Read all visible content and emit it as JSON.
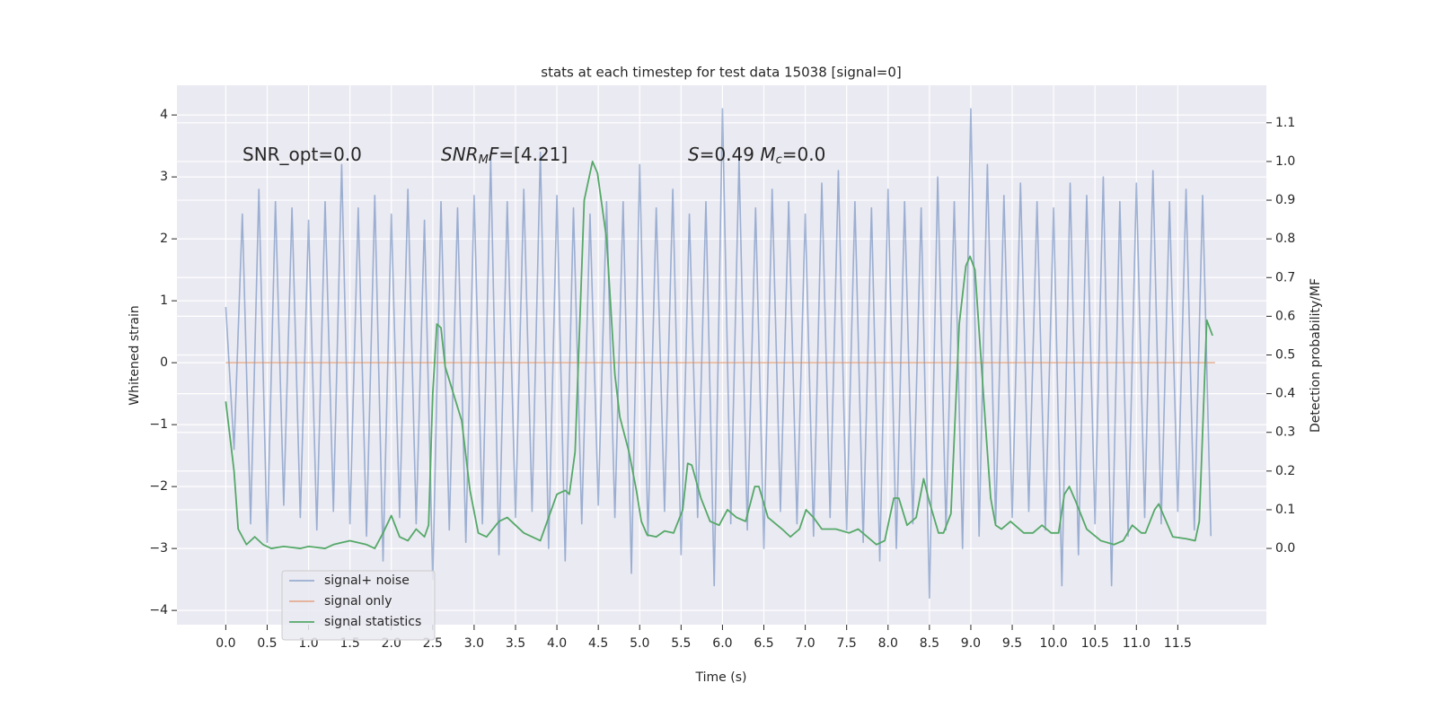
{
  "chart_data": {
    "type": "line",
    "title": "stats at each timestep for test data 15038 [signal=0]",
    "xlabel": "Time (s)",
    "ylabel": "Whitened strain",
    "y2label": "Detection probability/MF",
    "annotations": [
      [
        "SNR_opt=0.0"
      ],
      [
        {
          "t": "SNR",
          "italic": true
        },
        {
          "t": "M",
          "italic": true,
          "sub": true
        },
        {
          "t": "F",
          "italic": true
        },
        "=[4.21]"
      ],
      [
        {
          "t": "S",
          "italic": true
        },
        "=0.49   ",
        {
          "t": "M",
          "italic": true
        },
        {
          "t": "c",
          "italic": true,
          "sub": true
        },
        "=0.0"
      ]
    ],
    "xlim": [
      -0.59,
      12.57
    ],
    "ylim": [
      -4.23,
      4.48
    ],
    "y2lim": [
      -0.197,
      1.197
    ],
    "xticks": [
      {
        "value": 0,
        "label": "0.0"
      },
      {
        "value": 0.5,
        "label": "0.5"
      },
      {
        "value": 1,
        "label": "1.0"
      },
      {
        "value": 1.5,
        "label": "1.5"
      },
      {
        "value": 2,
        "label": "2.0"
      },
      {
        "value": 2.5,
        "label": "2.5"
      },
      {
        "value": 3,
        "label": "3.0"
      },
      {
        "value": 3.5,
        "label": "3.5"
      },
      {
        "value": 4,
        "label": "4.0"
      },
      {
        "value": 4.5,
        "label": "4.5"
      },
      {
        "value": 5,
        "label": "5.0"
      },
      {
        "value": 5.5,
        "label": "5.5"
      },
      {
        "value": 6,
        "label": "6.0"
      },
      {
        "value": 6.5,
        "label": "6.5"
      },
      {
        "value": 7,
        "label": "7.0"
      },
      {
        "value": 7.5,
        "label": "7.5"
      },
      {
        "value": 8,
        "label": "8.0"
      },
      {
        "value": 8.5,
        "label": "8.5"
      },
      {
        "value": 9,
        "label": "9.0"
      },
      {
        "value": 9.5,
        "label": "9.5"
      },
      {
        "value": 10,
        "label": "10.0"
      },
      {
        "value": 10.5,
        "label": "10.5"
      },
      {
        "value": 11,
        "label": "11.0"
      },
      {
        "value": 11.5,
        "label": "11.5"
      }
    ],
    "yticks": [
      4,
      3,
      2,
      1,
      0,
      {
        "value": -1,
        "label": "−1"
      },
      {
        "value": -2,
        "label": "−2"
      },
      {
        "value": -3,
        "label": "−3"
      },
      {
        "value": -4,
        "label": "−4"
      }
    ],
    "y2ticks": [
      {
        "value": 0,
        "label": "0.0"
      },
      {
        "value": 0.1,
        "label": "0.1"
      },
      {
        "value": 0.2,
        "label": "0.2"
      },
      {
        "value": 0.3,
        "label": "0.3"
      },
      {
        "value": 0.4,
        "label": "0.4"
      },
      {
        "value": 0.5,
        "label": "0.5"
      },
      {
        "value": 0.6,
        "label": "0.6"
      },
      {
        "value": 0.7,
        "label": "0.7"
      },
      {
        "value": 0.8,
        "label": "0.8"
      },
      {
        "value": 0.9,
        "label": "0.9"
      },
      {
        "value": 1,
        "label": "1.0"
      },
      {
        "value": 1.1,
        "label": "1.1"
      }
    ],
    "grid": true,
    "legend": "lower left",
    "background": "#eaeaf2",
    "series": [
      {
        "name": "signal+ noise",
        "color": "#4c72b0",
        "opacity": 0.5,
        "x": [
          0,
          0.1,
          0.2,
          0.3,
          0.4,
          0.5,
          0.6,
          0.7,
          0.8,
          0.9,
          1,
          1.1,
          1.2,
          1.3,
          1.4,
          1.5,
          1.6,
          1.7,
          1.8,
          1.9,
          2,
          2.1,
          2.2,
          2.3,
          2.4,
          2.5,
          2.6,
          2.7,
          2.8,
          2.9,
          3,
          3.1,
          3.2,
          3.3,
          3.4,
          3.5,
          3.6,
          3.7,
          3.8,
          3.9,
          4,
          4.1,
          4.2,
          4.3,
          4.4,
          4.5,
          4.6,
          4.7,
          4.8,
          4.9,
          5,
          5.1,
          5.2,
          5.3,
          5.4,
          5.5,
          5.6,
          5.7,
          5.8,
          5.9,
          6,
          6.1,
          6.2,
          6.3,
          6.4,
          6.5,
          6.6,
          6.7,
          6.8,
          6.9,
          7,
          7.1,
          7.2,
          7.3,
          7.4,
          7.5,
          7.6,
          7.7,
          7.8,
          7.9,
          8,
          8.1,
          8.2,
          8.3,
          8.4,
          8.5,
          8.6,
          8.7,
          8.8,
          8.9,
          9,
          9.1,
          9.2,
          9.3,
          9.4,
          9.5,
          9.6,
          9.7,
          9.8,
          9.9,
          10,
          10.1,
          10.2,
          10.3,
          10.4,
          10.5,
          10.6,
          10.7,
          10.8,
          10.9,
          11,
          11.1,
          11.2,
          11.3,
          11.4,
          11.5,
          11.6,
          11.7,
          11.8,
          11.9
        ],
        "values": [
          0.9,
          -1.4,
          2.4,
          -2.6,
          2.8,
          -2.9,
          2.6,
          -2.3,
          2.5,
          -2.5,
          2.3,
          -2.7,
          2.6,
          -2.4,
          3.2,
          -2.6,
          2.5,
          -2.8,
          2.7,
          -3.2,
          2.4,
          -2.5,
          2.8,
          -2.6,
          2.3,
          -3.5,
          2.6,
          -2.7,
          2.5,
          -2.9,
          2.7,
          -2.6,
          3.3,
          -3.1,
          2.6,
          -2.5,
          2.8,
          -2.4,
          3.4,
          -3.0,
          2.7,
          -3.2,
          2.5,
          -2.6,
          2.4,
          -2.3,
          2.6,
          -2.5,
          2.6,
          -3.4,
          3.2,
          -2.8,
          2.5,
          -2.4,
          2.8,
          -3.1,
          2.4,
          -2.5,
          2.6,
          -3.6,
          4.1,
          -2.6,
          3.3,
          -2.7,
          2.5,
          -3.0,
          2.8,
          -2.4,
          2.6,
          -2.6,
          2.4,
          -2.8,
          2.9,
          -2.5,
          3.1,
          -2.7,
          2.6,
          -2.9,
          2.5,
          -3.2,
          2.8,
          -3.0,
          2.6,
          -2.6,
          2.5,
          -3.8,
          3.0,
          -2.7,
          2.6,
          -3.0,
          4.1,
          -2.8,
          3.2,
          -2.6,
          2.7,
          -2.5,
          2.9,
          -2.4,
          2.6,
          -2.7,
          2.5,
          -3.6,
          2.9,
          -3.1,
          2.7,
          -2.6,
          3.0,
          -3.6,
          2.6,
          -2.8,
          2.9,
          -2.5,
          3.1,
          -2.6,
          2.6,
          -2.4,
          2.8,
          -2.7,
          2.7,
          -2.8
        ]
      },
      {
        "name": "signal only",
        "color": "#dd8452",
        "opacity": 0.6,
        "x": [
          0,
          11.95
        ],
        "values": [
          0,
          0
        ]
      },
      {
        "name": "signal statistics",
        "color": "#55a868",
        "opacity": 1,
        "axis": "y2",
        "x": [
          0,
          0.1,
          0.15,
          0.25,
          0.35,
          0.45,
          0.55,
          0.7,
          0.9,
          1.0,
          1.2,
          1.3,
          1.5,
          1.7,
          1.8,
          1.9,
          2.0,
          2.1,
          2.2,
          2.3,
          2.4,
          2.45,
          2.5,
          2.55,
          2.6,
          2.65,
          2.75,
          2.85,
          2.95,
          3.05,
          3.15,
          3.3,
          3.4,
          3.5,
          3.6,
          3.8,
          3.9,
          4.0,
          4.1,
          4.15,
          4.22,
          4.33,
          4.43,
          4.49,
          4.6,
          4.7,
          4.76,
          4.87,
          4.96,
          5.02,
          5.09,
          5.2,
          5.3,
          5.41,
          5.52,
          5.58,
          5.63,
          5.74,
          5.85,
          5.96,
          6.06,
          6.17,
          6.28,
          6.39,
          6.44,
          6.55,
          6.72,
          6.82,
          6.93,
          7.01,
          7.1,
          7.2,
          7.37,
          7.53,
          7.64,
          7.75,
          7.86,
          7.96,
          8.07,
          8.13,
          8.23,
          8.34,
          8.43,
          8.5,
          8.61,
          8.67,
          8.76,
          8.86,
          8.94,
          8.99,
          9.05,
          9.12,
          9.19,
          9.24,
          9.3,
          9.37,
          9.48,
          9.64,
          9.75,
          9.86,
          9.97,
          10.06,
          10.13,
          10.19,
          10.27,
          10.4,
          10.57,
          10.73,
          10.84,
          10.95,
          11.06,
          11.11,
          11.22,
          11.27,
          11.38,
          11.44,
          11.6,
          11.71,
          11.76,
          11.85,
          11.92
        ],
        "values": [
          0.38,
          0.2,
          0.05,
          0.01,
          0.03,
          0.01,
          0.0,
          0.005,
          0.0,
          0.005,
          0.0,
          0.01,
          0.02,
          0.01,
          0.0,
          0.04,
          0.085,
          0.03,
          0.02,
          0.05,
          0.03,
          0.06,
          0.4,
          0.58,
          0.57,
          0.47,
          0.4,
          0.33,
          0.15,
          0.04,
          0.03,
          0.07,
          0.08,
          0.06,
          0.04,
          0.02,
          0.08,
          0.14,
          0.15,
          0.14,
          0.25,
          0.9,
          1.0,
          0.97,
          0.8,
          0.45,
          0.34,
          0.25,
          0.15,
          0.07,
          0.035,
          0.03,
          0.045,
          0.04,
          0.1,
          0.22,
          0.215,
          0.13,
          0.07,
          0.06,
          0.1,
          0.08,
          0.07,
          0.16,
          0.16,
          0.08,
          0.05,
          0.03,
          0.05,
          0.1,
          0.08,
          0.05,
          0.05,
          0.04,
          0.05,
          0.03,
          0.01,
          0.02,
          0.13,
          0.13,
          0.06,
          0.08,
          0.18,
          0.12,
          0.04,
          0.04,
          0.09,
          0.58,
          0.73,
          0.755,
          0.72,
          0.5,
          0.28,
          0.13,
          0.06,
          0.05,
          0.07,
          0.04,
          0.04,
          0.06,
          0.04,
          0.04,
          0.14,
          0.16,
          0.12,
          0.05,
          0.02,
          0.01,
          0.02,
          0.06,
          0.04,
          0.04,
          0.1,
          0.115,
          0.06,
          0.03,
          0.025,
          0.02,
          0.07,
          0.59,
          0.55
        ]
      }
    ]
  }
}
